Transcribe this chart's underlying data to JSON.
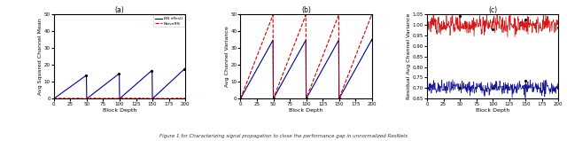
{
  "legend_labels": [
    "BN nResU",
    "NaïveRN"
  ],
  "line_colors": [
    "#00008B",
    "#CC0000"
  ],
  "subplot_a_title": "(a)",
  "subplot_b_title": "(b)",
  "subplot_c_title": "(c)",
  "ylabel_a": "Avg Squared Channel Mean",
  "ylabel_b": "Avg Channel Variance",
  "ylabel_c": "Residual Avg Channel Variance",
  "xlabel": "Block Depth",
  "xlim": [
    0,
    200
  ],
  "ylim_a": [
    0,
    50
  ],
  "ylim_b": [
    0,
    50
  ],
  "ylim_c": [
    0.65,
    1.05
  ],
  "yticks_a": [
    0,
    10,
    20,
    30,
    40,
    50
  ],
  "yticks_b": [
    0,
    10,
    20,
    30,
    40,
    50
  ],
  "xticks": [
    0,
    25,
    50,
    75,
    100,
    125,
    150,
    175,
    200
  ],
  "peaks_a_blue": [
    14,
    15,
    17,
    18
  ],
  "peaks_b_blue": [
    35,
    35,
    35,
    35
  ],
  "peaks_b_red": [
    50,
    50,
    50,
    50
  ],
  "red_mean_c": 1.0,
  "blue_mean_c": 0.7,
  "noise_seed": 42,
  "caption": "Figure 1 for Characterizing signal propagation to close the performance gap in unnormalized ResNets"
}
